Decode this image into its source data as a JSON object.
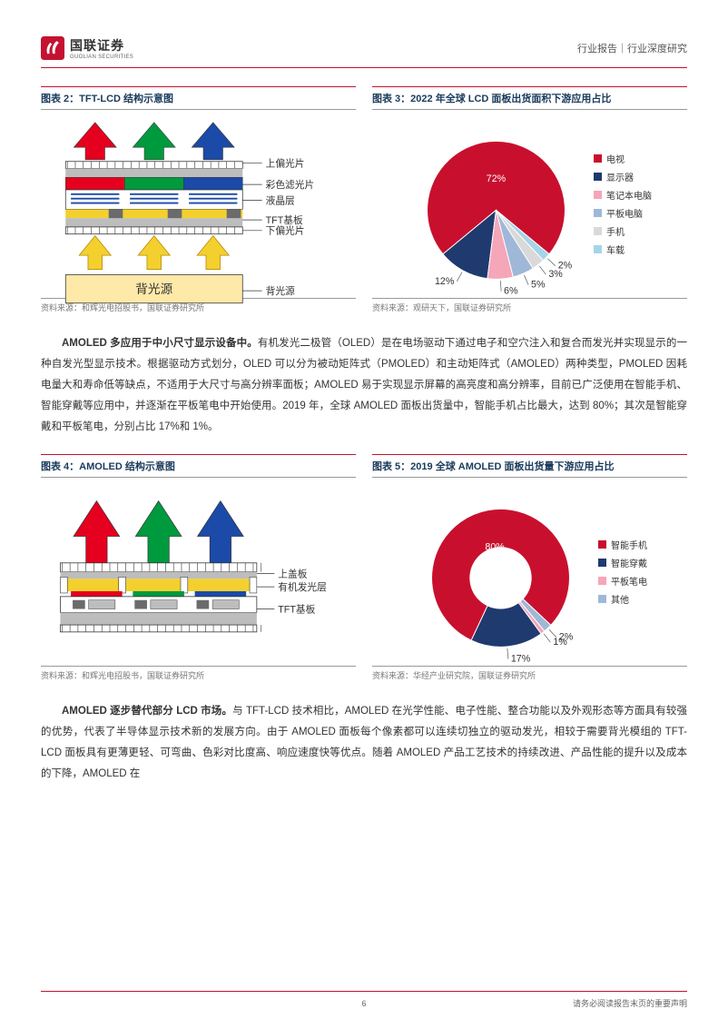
{
  "header": {
    "logo_cn": "国联证券",
    "logo_en": "GUOLIAN SECURITIES",
    "right": "行业报告｜行业深度研究"
  },
  "fig2": {
    "title": "图表 2：TFT-LCD 结构示意图",
    "source": "资料来源：和辉光电招股书，国联证券研究所",
    "labels": [
      "上偏光片",
      "彩色滤光片",
      "液晶层",
      "TFT基板",
      "下偏光片",
      "背光源"
    ],
    "backlight_label": "背光源",
    "colors": {
      "arrow_r": "#e5001f",
      "arrow_g": "#009a3e",
      "arrow_b": "#1b4aa8",
      "filter_r": "#e5001f",
      "filter_g": "#009a3e",
      "filter_b": "#1b4aa8",
      "yellow": "#f3d02e",
      "gray": "#bdbdbd",
      "darkgray": "#6b6b6b",
      "line": "#444"
    }
  },
  "fig3": {
    "title": "图表 3：2022 年全球 LCD 面板出货面积下游应用占比",
    "source": "资料来源：观研天下，国联证券研究所",
    "legend": [
      "电视",
      "显示器",
      "笔记本电脑",
      "平板电脑",
      "手机",
      "车载"
    ],
    "values": [
      72,
      12,
      6,
      5,
      3,
      2
    ],
    "colors": [
      "#c8102e",
      "#1f3a6e",
      "#f5a6b8",
      "#9fb8d8",
      "#d9d9d9",
      "#a6d5e8"
    ],
    "label_color": "#333",
    "label_fontsize": 10
  },
  "para1": "AMOLED 多应用于中小尺寸显示设备中。有机发光二极管（OLED）是在电场驱动下通过电子和空穴注入和复合而发光并实现显示的一种自发光型显示技术。根据驱动方式划分，OLED 可以分为被动矩阵式（PMOLED）和主动矩阵式（AMOLED）两种类型，PMOLED 因耗电量大和寿命低等缺点，不适用于大尺寸与高分辨率面板；AMOLED 易于实现显示屏幕的高亮度和高分辨率，目前已广泛使用在智能手机、智能穿戴等应用中，并逐渐在平板笔电中开始使用。2019 年，全球 AMOLED 面板出货量中，智能手机占比最大，达到 80%；其次是智能穿戴和平板笔电，分别占比 17%和 1%。",
  "para1_bold": "AMOLED 多应用于中小尺寸显示设备中。",
  "fig4": {
    "title": "图表 4：AMOLED 结构示意图",
    "source": "资料来源：和辉光电招股书，国联证券研究所",
    "labels": [
      "上盖板",
      "有机发光层",
      "TFT基板"
    ],
    "colors": {
      "arrow_r": "#e5001f",
      "arrow_g": "#009a3e",
      "arrow_b": "#1b4aa8",
      "yellow": "#f3d02e",
      "gray": "#bdbdbd",
      "darkgray": "#6b6b6b"
    }
  },
  "fig5": {
    "title": "图表 5：2019 全球 AMOLED 面板出货量下游应用占比",
    "source": "资料来源：华经产业研究院，国联证券研究所",
    "legend": [
      "智能手机",
      "智能穿戴",
      "平板笔电",
      "其他"
    ],
    "values": [
      80,
      17,
      1,
      2
    ],
    "colors": [
      "#c8102e",
      "#1f3a6e",
      "#f5a6b8",
      "#9fb8d8"
    ],
    "inner_radius": 0.45
  },
  "para2": "AMOLED 逐步替代部分 LCD 市场。与 TFT-LCD 技术相比，AMOLED 在光学性能、电子性能、整合功能以及外观形态等方面具有较强的优势，代表了半导体显示技术新的发展方向。由于 AMOLED 面板每个像素都可以连续切独立的驱动发光，相较于需要背光模组的 TFT-LCD 面板具有更薄更轻、可弯曲、色彩对比度高、响应速度快等优点。随着 AMOLED 产品工艺技术的持续改进、产品性能的提升以及成本的下降，AMOLED 在",
  "para2_bold": "AMOLED 逐步替代部分 LCD 市场。",
  "footer": {
    "page": "6",
    "disclaimer": "请务必阅读报告末页的重要声明"
  }
}
